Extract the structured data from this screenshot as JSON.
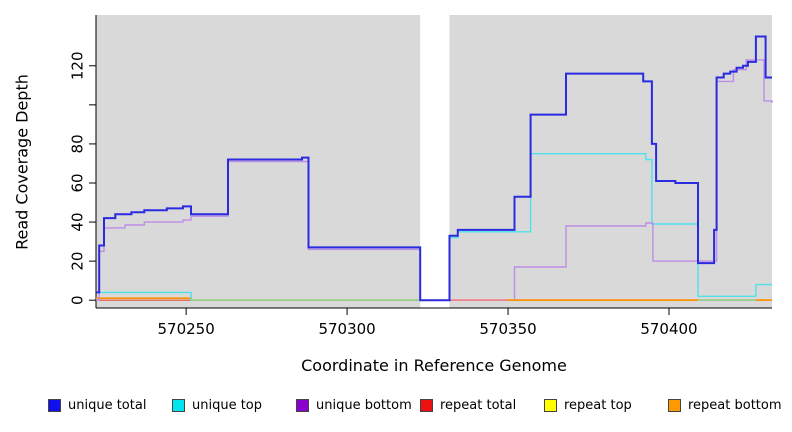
{
  "chart_data": {
    "type": "line",
    "style": "step-after",
    "title": "",
    "xlabel": "Coordinate in Reference Genome",
    "ylabel": "Read Coverage Depth",
    "xlim": [
      570222,
      570432
    ],
    "ylim": [
      -4,
      146
    ],
    "grid": false,
    "plot_background": "#d9d9d9",
    "gap_region": {
      "from": 570322.7,
      "to": 570331.8,
      "color": "#ffffff"
    },
    "x_axis": {
      "ticks": [
        570250,
        570300,
        570350,
        570400
      ],
      "tick_labels": [
        "570250",
        "570300",
        "570350",
        "570400"
      ]
    },
    "y_axis": {
      "ticks": [
        0,
        20,
        40,
        60,
        80,
        100,
        120
      ],
      "tick_labels": [
        "0",
        "20",
        "40",
        "60",
        "80",
        "",
        "120"
      ]
    },
    "legend_position": "bottom",
    "legend": [
      {
        "label": "unique total",
        "color": "#1010ee"
      },
      {
        "label": "unique top",
        "color": "#00e5ee"
      },
      {
        "label": "unique bottom",
        "color": "#8a00cc"
      },
      {
        "label": "repeat total",
        "color": "#ee1111"
      },
      {
        "label": "repeat top",
        "color": "#ffff00"
      },
      {
        "label": "repeat bottom",
        "color": "#ff9900"
      }
    ],
    "series": [
      {
        "name": "repeat top",
        "line_color": "#ffff00",
        "width": 1.2,
        "points": [
          [
            570222,
            0
          ],
          [
            570432,
            0
          ]
        ]
      },
      {
        "name": "repeat total",
        "line_color": "#e04858",
        "width": 1.2,
        "points": [
          [
            570222,
            0
          ],
          [
            570432,
            0
          ]
        ]
      },
      {
        "name": "repeat bottom",
        "line_color": "#ff9100",
        "width": 1.6,
        "points": [
          [
            570222,
            1
          ],
          [
            570251.5,
            0
          ],
          [
            570432,
            0
          ]
        ]
      },
      {
        "name": "unique top",
        "line_color": "#4ee2ea",
        "width": 1.4,
        "points": [
          [
            570222,
            4
          ],
          [
            570251.5,
            0
          ],
          [
            570331.8,
            32
          ],
          [
            570334.4,
            35
          ],
          [
            570357,
            75
          ],
          [
            570392.8,
            72
          ],
          [
            570394.7,
            39
          ],
          [
            570409,
            2
          ],
          [
            570427,
            8
          ],
          [
            570432,
            8
          ]
        ]
      },
      {
        "name": "unique bottom",
        "line_color": "#bd8ee6",
        "width": 1.4,
        "points": [
          [
            570222,
            0
          ],
          [
            570223,
            25
          ],
          [
            570224.5,
            37
          ],
          [
            570231,
            38.5
          ],
          [
            570237,
            40
          ],
          [
            570249,
            41
          ],
          [
            570251.5,
            43
          ],
          [
            570263,
            71
          ],
          [
            570288,
            26
          ],
          [
            570322.7,
            0
          ],
          [
            570352,
            17
          ],
          [
            570368,
            38
          ],
          [
            570392.8,
            39.5
          ],
          [
            570395,
            20
          ],
          [
            570414.8,
            112
          ],
          [
            570420,
            118
          ],
          [
            570424,
            123
          ],
          [
            570429.5,
            102
          ],
          [
            570432,
            101
          ]
        ]
      },
      {
        "name": "unique total",
        "line_color": "#2a2ae0",
        "width": 2,
        "points": [
          [
            570222,
            4
          ],
          [
            570223,
            28
          ],
          [
            570224.5,
            42
          ],
          [
            570228,
            44
          ],
          [
            570233,
            45
          ],
          [
            570237,
            46
          ],
          [
            570244,
            47
          ],
          [
            570249,
            48
          ],
          [
            570251.5,
            44
          ],
          [
            570263,
            72
          ],
          [
            570286,
            73
          ],
          [
            570288,
            27
          ],
          [
            570322.7,
            0
          ],
          [
            570331.8,
            33
          ],
          [
            570334.4,
            36
          ],
          [
            570352,
            53
          ],
          [
            570357,
            95
          ],
          [
            570368,
            116
          ],
          [
            570392,
            112
          ],
          [
            570394.7,
            80
          ],
          [
            570396,
            61
          ],
          [
            570402,
            60
          ],
          [
            570409,
            19
          ],
          [
            570414,
            36
          ],
          [
            570414.8,
            114
          ],
          [
            570417,
            116
          ],
          [
            570419,
            117
          ],
          [
            570421,
            119
          ],
          [
            570423,
            120
          ],
          [
            570424.5,
            122
          ],
          [
            570427,
            135
          ],
          [
            570430,
            114
          ],
          [
            570432,
            114
          ]
        ]
      }
    ],
    "zero_overlap_segments": [
      {
        "from": 570251.5,
        "to": 570322.7,
        "value": 0,
        "color": "#8fd08f"
      },
      {
        "from": 570331.8,
        "to": 570349.8,
        "value": 0,
        "color": "#ee7f92"
      },
      {
        "from": 570349.8,
        "to": 570409,
        "value": 0,
        "color": "#ff9100"
      },
      {
        "from": 570409,
        "to": 570427,
        "value": 0,
        "color": "#8fd08f"
      },
      {
        "from": 570427,
        "to": 570432,
        "value": 0,
        "color": "#ff9100"
      }
    ]
  }
}
